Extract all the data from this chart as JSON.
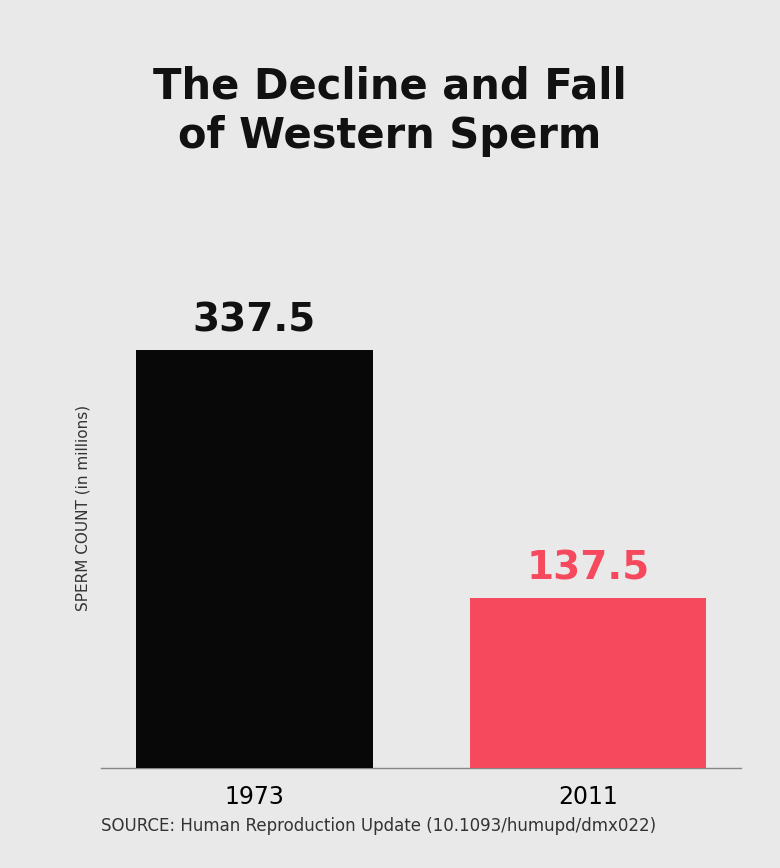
{
  "title": "The Decline and Fall\nof Western Sperm",
  "categories": [
    "1973",
    "2011"
  ],
  "values": [
    337.5,
    137.5
  ],
  "bar_colors": [
    "#080808",
    "#f7495e"
  ],
  "value_colors": [
    "#111111",
    "#f7495e"
  ],
  "ylabel": "SPERM COUNT (in millions)",
  "source": "SOURCE: Human Reproduction Update (10.1093/humupd/dmx022)",
  "background_color": "#e9e9e9",
  "ylim": [
    0,
    420
  ],
  "bar_positions": [
    1.0,
    2.2
  ],
  "bar_width": 0.85,
  "title_fontsize": 30,
  "value_fontsize": 28,
  "tick_fontsize": 17,
  "source_fontsize": 12,
  "ylabel_fontsize": 11
}
